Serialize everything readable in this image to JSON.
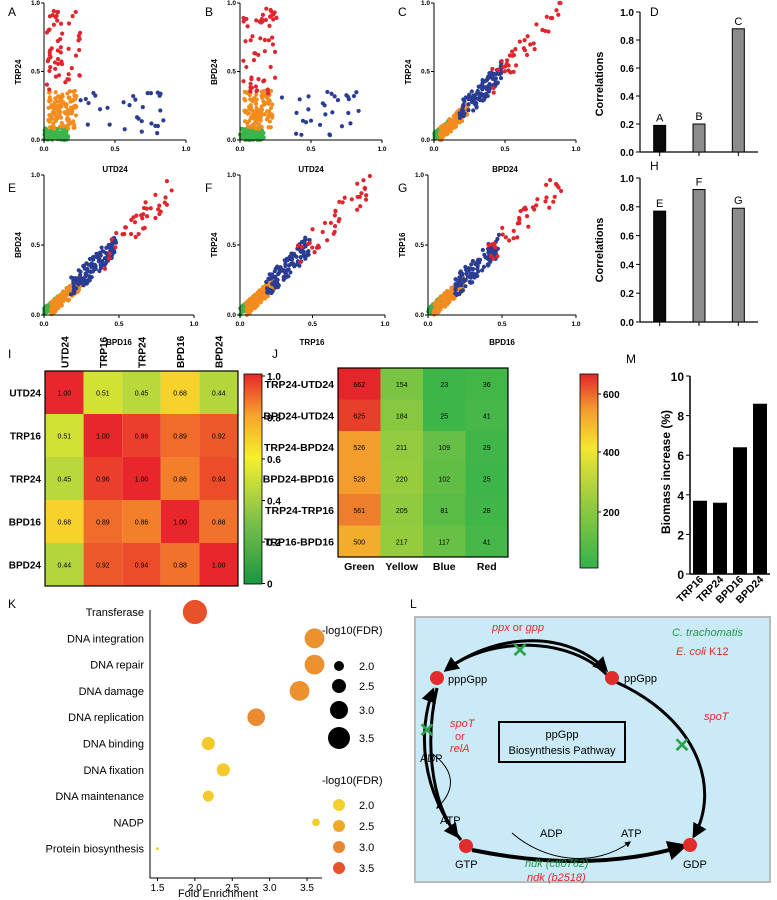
{
  "panel_letters": [
    "A",
    "B",
    "C",
    "D",
    "E",
    "F",
    "G",
    "H",
    "I",
    "J",
    "K",
    "L",
    "M"
  ],
  "scatter_panels": {
    "A": {
      "xlabel": "UTD24",
      "ylabel": "TRP24",
      "xticks": [
        "0.0",
        "0.5",
        "1.0"
      ],
      "yticks": [
        "0.0",
        "0.5",
        "1.0"
      ],
      "spread": "x"
    },
    "B": {
      "xlabel": "UTD24",
      "ylabel": "BPD24",
      "xticks": [
        "0.0",
        "0.5",
        "1.0"
      ],
      "yticks": [
        "0.0",
        "0.5",
        "1.0"
      ],
      "spread": "x"
    },
    "C": {
      "xlabel": "BPD24",
      "ylabel": "TRP24",
      "xticks": [
        "0.0",
        "0.5",
        "1.0"
      ],
      "yticks": [
        "0.0",
        "0.5",
        "1.0"
      ],
      "spread": "diag"
    },
    "E": {
      "xlabel": "BPD16",
      "ylabel": "BPD24",
      "xticks": [
        "0.0",
        "0.5",
        "1.0"
      ],
      "yticks": [
        "0.0",
        "0.5",
        "1.0"
      ],
      "spread": "diag"
    },
    "F": {
      "xlabel": "TRP16",
      "ylabel": "TRP24",
      "xticks": [
        "0.0",
        "0.5",
        "1.0"
      ],
      "yticks": [
        "0.0",
        "0.5",
        "1.0"
      ],
      "spread": "diag"
    },
    "G": {
      "xlabel": "BPD16",
      "ylabel": "TRP16",
      "xticks": [
        "0.0",
        "0.5",
        "1.0"
      ],
      "yticks": [
        "0.0",
        "0.5",
        "1.0"
      ],
      "spread": "diag"
    }
  },
  "colors": {
    "green": "#3cb44b",
    "orange": "#f28c1e",
    "blue": "#2b3d93",
    "red": "#e0262d"
  },
  "chart_data": [
    {
      "id": "D",
      "type": "bar",
      "categories": [
        "A",
        "B",
        "C"
      ],
      "values": [
        0.19,
        0.2,
        0.88
      ],
      "ylabel": "Correlations",
      "ylim": [
        0,
        1.0
      ],
      "yticks": [
        "0.0",
        "0.2",
        "0.4",
        "0.6",
        "0.8",
        "1.0"
      ],
      "colors": [
        "#0a0a0a",
        "#8c8c8c",
        "#8c8c8c"
      ]
    },
    {
      "id": "H",
      "type": "bar",
      "categories": [
        "E",
        "F",
        "G"
      ],
      "values": [
        0.77,
        0.92,
        0.79
      ],
      "ylabel": "Correlations",
      "ylim": [
        0,
        1.0
      ],
      "yticks": [
        "0.0",
        "0.2",
        "0.4",
        "0.6",
        "0.8",
        "1.0"
      ],
      "colors": [
        "#0a0a0a",
        "#8c8c8c",
        "#8c8c8c"
      ]
    },
    {
      "id": "I",
      "type": "heatmap",
      "labels": [
        "UTD24",
        "TRP16",
        "TRP24",
        "BPD16",
        "BPD24"
      ],
      "values": [
        [
          1.0,
          0.51,
          0.45,
          0.68,
          0.44
        ],
        [
          0.51,
          1.0,
          0.96,
          0.89,
          0.92
        ],
        [
          0.45,
          0.96,
          1.0,
          0.86,
          0.94
        ],
        [
          0.68,
          0.89,
          0.86,
          1.0,
          0.88
        ],
        [
          0.44,
          0.92,
          0.94,
          0.88,
          1.0
        ]
      ],
      "display": [
        [
          "1.00",
          "0.51",
          "0.45",
          "0.68",
          "0.44"
        ],
        [
          "0.51",
          "1.00",
          "0.96",
          "0.89",
          "0.92"
        ],
        [
          "0.45",
          "0.96",
          "1.00",
          "0.86",
          "0.94"
        ],
        [
          "0.68",
          "0.89",
          "0.86",
          "1.00",
          "0.88"
        ],
        [
          "0.44",
          "0.92",
          "0.94",
          "0.88",
          "1.00"
        ]
      ],
      "colorbar_ticks": [
        "1.0",
        "0.8",
        "0.6",
        "0.4",
        "0.2",
        "0"
      ],
      "range": [
        0,
        1
      ]
    },
    {
      "id": "J",
      "type": "heatmap",
      "rows": [
        "TRP24-UTD24",
        "BPD24-UTD24",
        "TRP24-BPD24",
        "BPD24-BPD16",
        "TRP24-TRP16",
        "TRP16-BPD16"
      ],
      "columns": [
        "Green",
        "Yellow",
        "Blue",
        "Red"
      ],
      "values": [
        [
          662,
          154,
          23,
          36
        ],
        [
          625,
          184,
          25,
          41
        ],
        [
          526,
          211,
          109,
          29
        ],
        [
          528,
          220,
          102,
          25
        ],
        [
          561,
          205,
          81,
          28
        ],
        [
          500,
          217,
          117,
          41
        ]
      ],
      "display": [
        [
          "662",
          "154",
          "23",
          "36"
        ],
        [
          "625",
          "184",
          "25",
          "41"
        ],
        [
          "526",
          "211",
          "109",
          "29"
        ],
        [
          "528",
          "220",
          "102",
          "25"
        ],
        [
          "561",
          "205",
          "81",
          "28"
        ],
        [
          "500",
          "217",
          "117",
          "41"
        ]
      ],
      "colorbar_ticks": [
        "600",
        "400",
        "200"
      ],
      "range": [
        0,
        650
      ]
    },
    {
      "id": "M",
      "type": "bar",
      "categories": [
        "TRP16",
        "TRP24",
        "BPD16",
        "BPD24"
      ],
      "values": [
        3.7,
        3.6,
        6.4,
        8.6
      ],
      "ylabel": "Biomass increase  (%)",
      "ylim": [
        0,
        10
      ],
      "yticks": [
        "0",
        "2",
        "4",
        "6",
        "8",
        "10"
      ]
    },
    {
      "id": "K",
      "type": "scatter",
      "xlabel": "Fold Enrichment",
      "xticks": [
        "1.5",
        "2.0",
        "2.5",
        "3.0",
        "3.5"
      ],
      "xlim": [
        1.4,
        3.7
      ],
      "categories": [
        "Transferase",
        "DNA integration",
        "DNA repair",
        "DNA damage",
        "DNA replication",
        "DNA binding",
        "DNA fixation",
        "DNA maintenance",
        "NADP",
        "Protein biosynthesis"
      ],
      "x": [
        2.0,
        3.6,
        3.6,
        3.4,
        2.82,
        2.18,
        2.38,
        2.18,
        3.62,
        1.5
      ],
      "size": [
        3.6,
        3.2,
        3.2,
        3.2,
        3.0,
        2.6,
        2.6,
        2.4,
        2.1,
        1.6
      ],
      "color_value": [
        3.6,
        2.9,
        2.9,
        2.9,
        3.0,
        2.1,
        2.1,
        2.1,
        2.0,
        2.0
      ],
      "size_legend": {
        "title": "-log10(FDR)",
        "labels": [
          "2.0",
          "2.5",
          "3.0",
          "3.5"
        ]
      },
      "color_legend": {
        "title": "-log10(FDR)",
        "labels": [
          "2.0",
          "2.5",
          "3.0",
          "3.5"
        ],
        "colors": [
          "#f4d02c",
          "#f0a82c",
          "#ea8631",
          "#e8512a"
        ]
      }
    }
  ],
  "pathway": {
    "title_line1": "ppGpp",
    "title_line2": "Biosynthesis Pathway",
    "species_ct": "C. trachomatis",
    "species_ec_italic": "E. coli",
    "species_ec_rest": " K12",
    "top_gene": "ppx",
    "top_or": " or ",
    "top_gene2": "gpp",
    "left_gene1": "spoT",
    "left_or": "or",
    "left_gene2": "relA",
    "right_gene": "spoT",
    "bottom_gene1": "ndk (ctl0762)",
    "bottom_gene2": "ndk (b2518)",
    "nodes": [
      "pppGpp",
      "ppGpp",
      "GTP",
      "GDP"
    ],
    "adp_left": "ADP",
    "atp_left": "ATP",
    "adp_mid": "ADP",
    "atp_mid": "ATP",
    "x_mark": "✕"
  }
}
